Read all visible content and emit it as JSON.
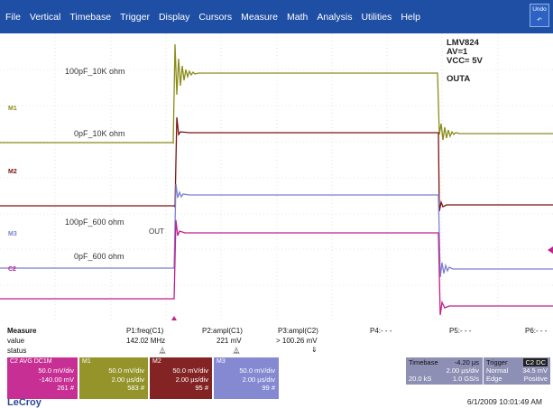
{
  "menu": {
    "items": [
      "File",
      "Vertical",
      "Timebase",
      "Trigger",
      "Display",
      "Cursors",
      "Measure",
      "Math",
      "Analysis",
      "Utilities",
      "Help"
    ],
    "undo_label": "Undo"
  },
  "info": {
    "device": "LMV824",
    "gain": "AV=1",
    "vcc": "VCC= 5V",
    "output": "OUTA"
  },
  "trace_labels": {
    "t1": "100pF_10K ohm",
    "t2": "0pF_10K ohm",
    "t3": "100pF_600 ohm",
    "t4": "0pF_600 ohm",
    "out": "OUT"
  },
  "markers": {
    "m1": "M1",
    "m2": "M2",
    "m3": "M3",
    "c2": "C2"
  },
  "measure": {
    "title": "Measure",
    "row_value": "value",
    "row_status": "status",
    "p1_name": "P1:freq(C1)",
    "p1_value": "142.02 MHz",
    "p2_name": "P2:ampl(C1)",
    "p2_value": "221 mV",
    "p3_name": "P3:ampl(C2)",
    "p3_value": "> 100.26 mV",
    "p4_name": "P4:- - -",
    "p5_name": "P5:- - -",
    "p6_name": "P6:- - -"
  },
  "channels": [
    {
      "head": "C2",
      "head2": "AVG  DC1M",
      "l1": "50.0 mV/div",
      "l2": "-140.00 mV",
      "l3": "261 #",
      "color": "#c31e8d"
    },
    {
      "head": "M1",
      "head2": "",
      "l1": "50.0 mV/div",
      "l2": "2.00 µs/div",
      "l3": "583 #",
      "color": "#8b8b1a"
    },
    {
      "head": "M2",
      "head2": "",
      "l1": "50.0 mV/div",
      "l2": "2.00 µs/div",
      "l3": "95 #",
      "color": "#7a1111"
    },
    {
      "head": "M3",
      "head2": "",
      "l1": "50.0 mV/div",
      "l2": "2.00 µs/div",
      "l3": "99 #",
      "color": "#7a7fcf"
    }
  ],
  "timebase": {
    "label": "Timebase",
    "offset": "-4.20 µs",
    "div": "2.00 µs/div",
    "samples": "20.0 kS",
    "rate": "1.0 GS/s"
  },
  "trigger": {
    "label": "Trigger",
    "badge": "C2 DC",
    "mode": "Normal",
    "level": "34.5 mV",
    "type": "Edge",
    "slope": "Positive"
  },
  "brand": "LeCroy",
  "timestamp": "6/1/2009 10:01:49 AM"
}
